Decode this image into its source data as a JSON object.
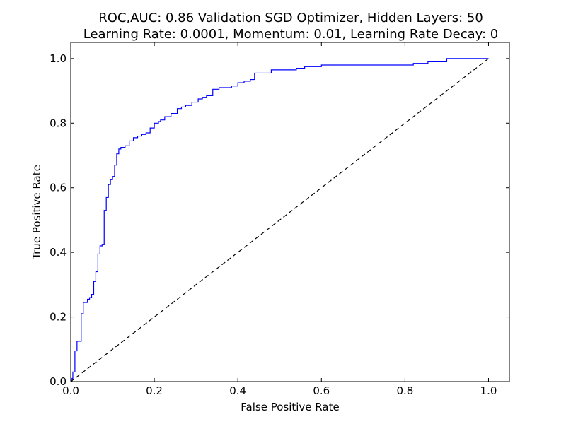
{
  "chart_data": {
    "type": "line",
    "title": "ROC,AUC: 0.86 Validation SGD Optimizer, Hidden Layers: 50",
    "subtitle": "Learning Rate: 0.0001, Momentum: 0.01, Learning Rate Decay: 0",
    "xlabel": "False Positive Rate",
    "ylabel": "True Positive Rate",
    "xlim": [
      0.0,
      1.05
    ],
    "ylim": [
      0.0,
      1.05
    ],
    "x_ticks": [
      "0.0",
      "0.2",
      "0.4",
      "0.6",
      "0.8",
      "1.0"
    ],
    "y_ticks": [
      "0.0",
      "0.2",
      "0.4",
      "0.6",
      "0.8",
      "1.0"
    ],
    "grid": false,
    "series": [
      {
        "color": "#0000ff",
        "style": "solid",
        "step": true,
        "x": [
          0.0,
          0.003,
          0.005,
          0.01,
          0.015,
          0.025,
          0.03,
          0.04,
          0.045,
          0.05,
          0.055,
          0.06,
          0.065,
          0.07,
          0.075,
          0.08,
          0.085,
          0.09,
          0.095,
          0.1,
          0.105,
          0.11,
          0.115,
          0.12,
          0.13,
          0.14,
          0.15,
          0.16,
          0.17,
          0.18,
          0.19,
          0.2,
          0.21,
          0.215,
          0.225,
          0.24,
          0.255,
          0.265,
          0.275,
          0.29,
          0.305,
          0.315,
          0.325,
          0.34,
          0.355,
          0.385,
          0.4,
          0.415,
          0.43,
          0.44,
          0.48,
          0.54,
          0.56,
          0.6,
          0.63,
          0.82,
          0.855,
          0.9,
          1.0
        ],
        "y": [
          0.0,
          0.01,
          0.03,
          0.095,
          0.125,
          0.21,
          0.245,
          0.255,
          0.26,
          0.27,
          0.31,
          0.34,
          0.395,
          0.42,
          0.425,
          0.53,
          0.57,
          0.61,
          0.625,
          0.635,
          0.67,
          0.705,
          0.72,
          0.725,
          0.73,
          0.745,
          0.755,
          0.76,
          0.765,
          0.77,
          0.785,
          0.8,
          0.805,
          0.81,
          0.82,
          0.83,
          0.845,
          0.85,
          0.855,
          0.865,
          0.875,
          0.88,
          0.885,
          0.905,
          0.91,
          0.915,
          0.925,
          0.93,
          0.935,
          0.955,
          0.965,
          0.97,
          0.975,
          0.98,
          0.98,
          0.985,
          0.99,
          1.0,
          1.0
        ]
      },
      {
        "color": "#000000",
        "style": "dashed",
        "step": false,
        "x": [
          0.0,
          1.0
        ],
        "y": [
          0.0,
          1.0
        ]
      }
    ]
  }
}
